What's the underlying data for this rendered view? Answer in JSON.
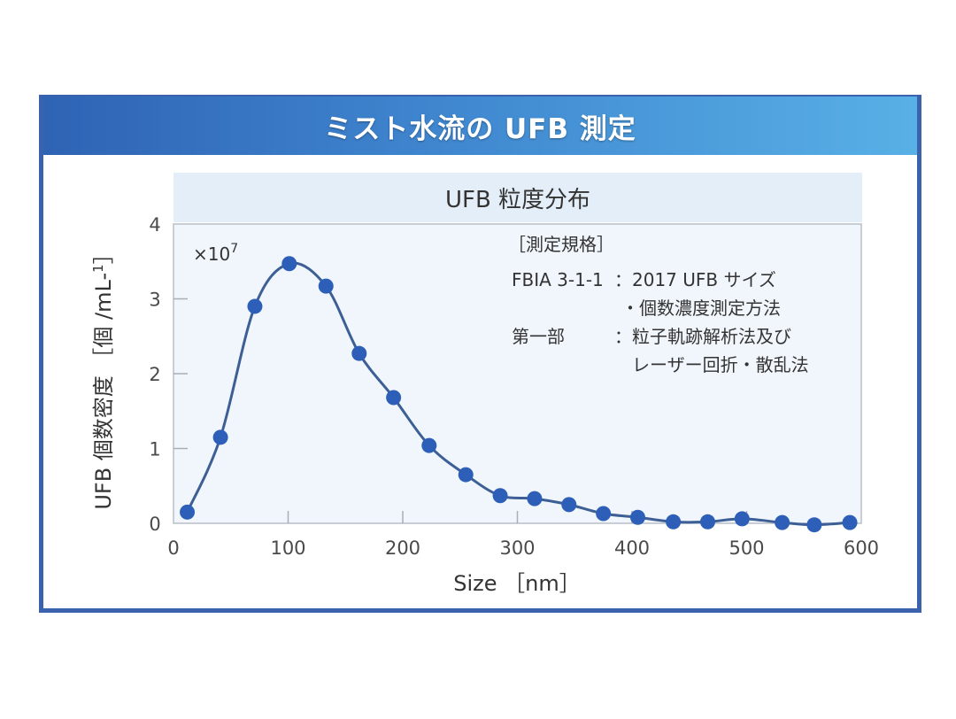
{
  "header": {
    "title": "ミスト水流の UFB 測定"
  },
  "subtitle": "UFB 粒度分布",
  "colors": {
    "frame": "#3b63ad",
    "header_left": "#2f63b4",
    "header_right": "#58b0e6",
    "plot_bg": "#f1f6fc",
    "series": "#2d5fb8",
    "line": "#3d5f95"
  },
  "annotation": {
    "heading": "［測定規格］",
    "lines": [
      {
        "label": "FBIA 3-1-1",
        "sep": "：",
        "text": "2017 UFB サイズ"
      },
      {
        "label": "",
        "sep": "",
        "text": "・個数濃度測定方法"
      },
      {
        "label": "第一部",
        "sep": "：",
        "text": "粒子軌跡解析法及び"
      },
      {
        "label": "",
        "sep": "",
        "text": "レーザー回折・散乱法"
      }
    ]
  },
  "chart_data": {
    "type": "line",
    "title": "UFB 粒度分布",
    "xlabel": "Size ［nm］",
    "ylabel": "UFB 個数密度 ［個 /mL-1］",
    "y_multiplier": "×10^7",
    "xlim": [
      0,
      600
    ],
    "ylim": [
      0,
      4
    ],
    "xticks": [
      0,
      100,
      200,
      300,
      400,
      500,
      600
    ],
    "yticks": [
      0,
      1,
      2,
      3,
      4
    ],
    "grid": false,
    "legend": null,
    "series": [
      {
        "name": "UFB 個数密度",
        "x": [
          12,
          41,
          71,
          101,
          133,
          162,
          192,
          223,
          255,
          285,
          315,
          345,
          375,
          405,
          436,
          466,
          496,
          531,
          559,
          590
        ],
        "values": [
          0.15,
          1.15,
          2.9,
          3.47,
          3.17,
          2.27,
          1.68,
          1.04,
          0.65,
          0.37,
          0.33,
          0.25,
          0.13,
          0.08,
          0.02,
          0.02,
          0.06,
          0.01,
          -0.02,
          0.01
        ]
      }
    ]
  }
}
